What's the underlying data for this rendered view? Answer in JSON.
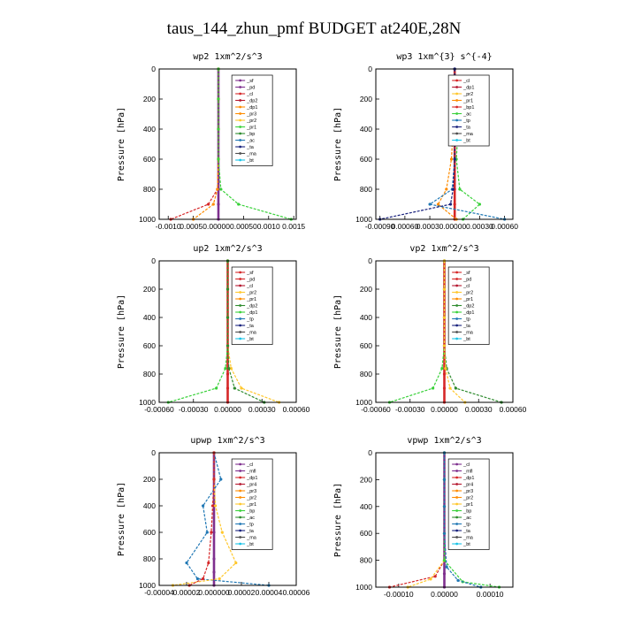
{
  "figure_title": "taus_144_zhun_pmf  BUDGET at240E,28N",
  "ylabel": "Pressure [hPa]",
  "colors": {
    "purple": "#7e2f8e",
    "red": "#d62728",
    "crimson": "#b5172f",
    "orange": "#ff8c00",
    "yellow": "#ffc72c",
    "green": "#39d13a",
    "darkgreen": "#2e8b2e",
    "blue": "#1f77b4",
    "navy": "#1a237e",
    "cyan": "#19c3e6",
    "gray": "#4d4d4d",
    "black": "#000000"
  },
  "chart_data": [
    {
      "type": "line",
      "title": "wp2   1xm^2/s^3",
      "ylim": [
        1000,
        0
      ],
      "yticks": [
        0,
        200,
        400,
        600,
        800,
        1000
      ],
      "xlim": [
        -0.00118,
        0.00155
      ],
      "xticks": [
        -0.001,
        -0.0005,
        0.0,
        0.0005,
        0.001,
        0.0015
      ],
      "xticklabels": [
        "-0.0010",
        "0.00050",
        ".00000",
        "0.00050",
        "0.0010",
        "0.0015"
      ],
      "legend": [
        "_sf",
        "_pd",
        "_cl",
        "_dp2",
        "_dp1",
        "_pr3",
        "_pr2",
        "_pr1",
        "_bp",
        "_ac",
        "_ta",
        "_ma",
        "_bt"
      ],
      "legend_colors": [
        "purple",
        "purple",
        "red",
        "crimson",
        "orange",
        "orange",
        "yellow",
        "green",
        "darkgreen",
        "blue",
        "navy",
        "gray",
        "cyan"
      ],
      "series": [
        {
          "color": "purple",
          "x": [
            0,
            0,
            0,
            0,
            0,
            0,
            0
          ],
          "y": [
            0,
            200,
            400,
            600,
            800,
            900,
            1000
          ]
        },
        {
          "color": "red",
          "x": [
            0,
            0,
            0,
            0,
            -2e-05,
            -0.0002,
            -0.00095
          ],
          "y": [
            0,
            200,
            400,
            600,
            800,
            900,
            1000
          ]
        },
        {
          "color": "orange",
          "x": [
            0,
            0,
            0,
            0,
            -2e-05,
            -0.0001,
            -0.0005
          ],
          "y": [
            0,
            200,
            400,
            600,
            800,
            900,
            1000
          ]
        },
        {
          "color": "green",
          "x": [
            0,
            0,
            0,
            0,
            5e-05,
            0.0004,
            0.00145
          ],
          "y": [
            0,
            200,
            400,
            600,
            800,
            900,
            1000
          ]
        }
      ]
    },
    {
      "type": "line",
      "title": "wp3   1xm^{3} s^{-4}",
      "ylim": [
        1000,
        0
      ],
      "yticks": [
        0,
        200,
        400,
        600,
        800,
        1000
      ],
      "xlim": [
        -0.00095,
        0.0007
      ],
      "xticks": [
        -0.0009,
        -0.0006,
        -0.0003,
        0.0,
        0.0003,
        0.0006
      ],
      "xticklabels": [
        "-0.00090",
        "0.00060",
        "0.00030",
        ".00000",
        "0.00030",
        "0.00060"
      ],
      "legend": [
        "_cl",
        "_dp1",
        "_pr2",
        "_pr1",
        "_bp1",
        "_ac",
        "_tp",
        "_ta",
        "_ma",
        "_bt"
      ],
      "legend_colors": [
        "red",
        "crimson",
        "yellow",
        "orange",
        "red",
        "green",
        "blue",
        "navy",
        "gray",
        "cyan"
      ],
      "series": [
        {
          "color": "red",
          "x": [
            0,
            0,
            0,
            0,
            0,
            0,
            0
          ],
          "y": [
            0,
            200,
            400,
            600,
            800,
            900,
            1000
          ]
        },
        {
          "color": "green",
          "x": [
            0,
            -4e-05,
            4e-05,
            2e-05,
            6e-05,
            0.0003,
            0.0001
          ],
          "y": [
            130,
            250,
            400,
            600,
            800,
            900,
            1000
          ]
        },
        {
          "color": "orange",
          "x": [
            0,
            -1e-05,
            -2e-05,
            -4e-05,
            -0.0001,
            -0.0002,
            2e-05
          ],
          "y": [
            130,
            250,
            400,
            600,
            800,
            900,
            1000
          ]
        },
        {
          "color": "blue",
          "x": [
            0,
            0,
            0,
            0,
            -3e-05,
            -0.0003,
            0.0006
          ],
          "y": [
            0,
            200,
            400,
            600,
            800,
            900,
            1000
          ]
        },
        {
          "color": "navy",
          "x": [
            0,
            0,
            0,
            0,
            -2e-05,
            -5e-05,
            -0.0009
          ],
          "y": [
            0,
            200,
            400,
            600,
            800,
            900,
            1000
          ]
        }
      ]
    },
    {
      "type": "line",
      "title": "up2   1xm^2/s^3",
      "ylim": [
        1000,
        0
      ],
      "yticks": [
        0,
        200,
        400,
        600,
        800,
        1000
      ],
      "xlim": [
        -0.0006,
        0.0006
      ],
      "xticks": [
        -0.0006,
        -0.0003,
        0.0,
        0.0003,
        0.0006
      ],
      "xticklabels": [
        "-0.00060",
        "-0.00030",
        "0.00000",
        "0.00030",
        "0.00060"
      ],
      "legend": [
        "_sf",
        "_pd",
        "_cl",
        "_pr2",
        "_pr1",
        "_dp2",
        "_dp1",
        "_tp",
        "_ta",
        "_ma",
        "_bt"
      ],
      "legend_colors": [
        "red",
        "red",
        "crimson",
        "yellow",
        "orange",
        "darkgreen",
        "green",
        "blue",
        "navy",
        "gray",
        "cyan"
      ],
      "series": [
        {
          "color": "red",
          "x": [
            0,
            0,
            0,
            0,
            0,
            0,
            0
          ],
          "y": [
            0,
            200,
            400,
            600,
            800,
            900,
            1000
          ]
        },
        {
          "color": "green",
          "x": [
            0,
            0,
            0,
            0,
            -2e-05,
            -0.0001,
            -0.00052
          ],
          "y": [
            0,
            200,
            400,
            600,
            760,
            900,
            1000
          ]
        },
        {
          "color": "yellow",
          "x": [
            0,
            0,
            0,
            0,
            3e-05,
            0.00012,
            0.00045
          ],
          "y": [
            0,
            200,
            400,
            600,
            760,
            900,
            1000
          ]
        },
        {
          "color": "darkgreen",
          "x": [
            0,
            0,
            0,
            0,
            1e-05,
            6e-05,
            0.00032
          ],
          "y": [
            0,
            200,
            400,
            600,
            760,
            900,
            1000
          ]
        }
      ]
    },
    {
      "type": "line",
      "title": "vp2   1xm^2/s^3",
      "ylim": [
        1000,
        0
      ],
      "yticks": [
        0,
        200,
        400,
        600,
        800,
        1000
      ],
      "xlim": [
        -0.0006,
        0.0006
      ],
      "xticks": [
        -0.0006,
        -0.0003,
        0.0,
        0.0003,
        0.0006
      ],
      "xticklabels": [
        "-0.00060",
        "-0.00030",
        "0.00000",
        "0.00030",
        "0.00060"
      ],
      "legend": [
        "_sf",
        "_pd",
        "_cl",
        "_pr2",
        "_pr1",
        "_dp2",
        "_dp1",
        "_tp",
        "_ta",
        "_ma",
        "_bt"
      ],
      "legend_colors": [
        "red",
        "red",
        "crimson",
        "yellow",
        "orange",
        "darkgreen",
        "green",
        "blue",
        "navy",
        "gray",
        "cyan"
      ],
      "series": [
        {
          "color": "red",
          "x": [
            0,
            0,
            0,
            0,
            0,
            0,
            0
          ],
          "y": [
            0,
            200,
            400,
            600,
            800,
            900,
            1000
          ]
        },
        {
          "color": "green",
          "x": [
            0,
            0,
            0,
            0,
            -2e-05,
            -0.0001,
            -0.00048
          ],
          "y": [
            0,
            200,
            400,
            600,
            760,
            900,
            1000
          ]
        },
        {
          "color": "darkgreen",
          "x": [
            0,
            0,
            0,
            0,
            2e-05,
            0.0001,
            0.0005
          ],
          "y": [
            0,
            200,
            400,
            600,
            760,
            900,
            1000
          ]
        },
        {
          "color": "yellow",
          "x": [
            0,
            0,
            0,
            0,
            1e-05,
            5e-05,
            0.00018
          ],
          "y": [
            0,
            200,
            400,
            600,
            760,
            900,
            1000
          ]
        }
      ]
    },
    {
      "type": "line",
      "title": "upwp   1xm^2/s^3",
      "ylim": [
        1000,
        0
      ],
      "yticks": [
        0,
        200,
        400,
        600,
        800,
        1000
      ],
      "xlim": [
        -4e-05,
        6e-05
      ],
      "xticks": [
        -4e-05,
        -2e-05,
        0.0,
        2e-05,
        4e-05,
        6e-05
      ],
      "xticklabels": [
        "-0.00004",
        "0.00002",
        "0.000000",
        "0.00002",
        "0.00004",
        "0.00006"
      ],
      "legend": [
        "_cl",
        "_mfl",
        "_dp1",
        "_pr4",
        "_pr3",
        "_pr2",
        "_pr1",
        "_bp",
        "_ac",
        "_tp",
        "_ta",
        "_ma",
        "_bt"
      ],
      "legend_colors": [
        "purple",
        "purple",
        "red",
        "crimson",
        "orange",
        "orange",
        "yellow",
        "green",
        "darkgreen",
        "blue",
        "navy",
        "gray",
        "cyan"
      ],
      "series": [
        {
          "color": "purple",
          "x": [
            0,
            0,
            0,
            0,
            0,
            0,
            0
          ],
          "y": [
            0,
            200,
            400,
            600,
            800,
            900,
            1000
          ]
        },
        {
          "color": "blue",
          "x": [
            0,
            5e-06,
            -8e-06,
            -5e-06,
            -2e-05,
            -1.2e-05,
            4e-05
          ],
          "y": [
            0,
            200,
            400,
            600,
            830,
            950,
            1000
          ]
        },
        {
          "color": "yellow",
          "x": [
            0,
            0,
            1e-06,
            6e-06,
            1.6e-05,
            4e-06,
            -3e-05
          ],
          "y": [
            0,
            200,
            400,
            600,
            830,
            950,
            1000
          ]
        },
        {
          "color": "red",
          "x": [
            0,
            0,
            -1e-06,
            -2e-06,
            -4e-06,
            -8e-06,
            -1.8e-05
          ],
          "y": [
            0,
            200,
            400,
            600,
            830,
            950,
            1000
          ]
        }
      ]
    },
    {
      "type": "line",
      "title": "vpwp   1xm^2/s^3",
      "ylim": [
        1000,
        0
      ],
      "yticks": [
        0,
        200,
        400,
        600,
        800,
        1000
      ],
      "xlim": [
        -0.00015,
        0.00015
      ],
      "xticks": [
        -0.0001,
        0.0,
        0.0001
      ],
      "xticklabels": [
        "-0.00010",
        "0.00000",
        "0.00010"
      ],
      "legend": [
        "_cl",
        "_mfl",
        "_dp1",
        "_pr4",
        "_pr3",
        "_pr2",
        "_pr1",
        "_bp",
        "_ac",
        "_tp",
        "_ta",
        "_ma",
        "_bt"
      ],
      "legend_colors": [
        "purple",
        "purple",
        "red",
        "crimson",
        "orange",
        "orange",
        "yellow",
        "green",
        "darkgreen",
        "blue",
        "navy",
        "gray",
        "cyan"
      ],
      "series": [
        {
          "color": "purple",
          "x": [
            0,
            0,
            0,
            0,
            0,
            0,
            0
          ],
          "y": [
            0,
            200,
            400,
            600,
            800,
            900,
            1000
          ]
        },
        {
          "color": "red",
          "x": [
            0,
            0,
            0,
            0,
            0,
            -2e-05,
            -0.00012
          ],
          "y": [
            0,
            200,
            400,
            600,
            800,
            920,
            1000
          ]
        },
        {
          "color": "yellow",
          "x": [
            0,
            0,
            0,
            0,
            0,
            -3e-05,
            -8e-05
          ],
          "y": [
            0,
            200,
            400,
            600,
            800,
            940,
            1000
          ]
        },
        {
          "color": "green",
          "x": [
            0,
            0,
            0,
            0,
            0,
            4e-05,
            0.00012
          ],
          "y": [
            0,
            200,
            400,
            600,
            800,
            960,
            1000
          ]
        },
        {
          "color": "blue",
          "x": [
            0,
            0,
            0,
            0,
            5e-06,
            3e-05,
            8e-05
          ],
          "y": [
            0,
            200,
            400,
            600,
            850,
            950,
            1000
          ]
        }
      ]
    }
  ]
}
